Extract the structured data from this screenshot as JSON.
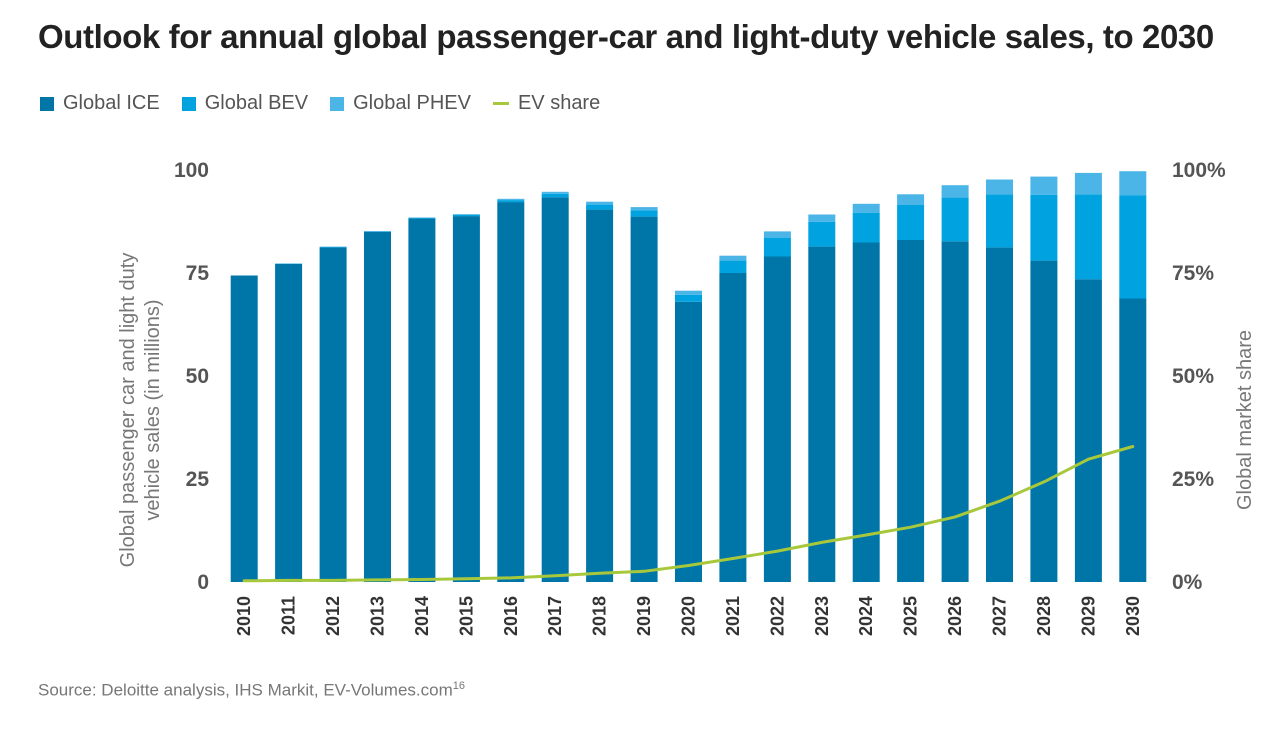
{
  "chart_data": {
    "type": "bar",
    "title": "Outlook for annual global passenger-car and light-duty vehicle sales, to 2030",
    "ylabel": "Global passenger car and light duty vehicle sales (in millions)",
    "y2label": "Global market share",
    "source": "Source: Deloitte analysis, IHS Markit, EV-Volumes.com",
    "source_note": "16",
    "ylim": [
      0,
      100
    ],
    "y2lim": [
      0,
      100
    ],
    "yticks": [
      "0",
      "25",
      "50",
      "75",
      "100"
    ],
    "y2ticks": [
      "0%",
      "25%",
      "50%",
      "75%",
      "100%"
    ],
    "legend_position": "top-left",
    "stacked": true,
    "categories": [
      "2010",
      "2011",
      "2012",
      "2013",
      "2014",
      "2015",
      "2016",
      "2017",
      "2018",
      "2019",
      "2020",
      "2021",
      "2022",
      "2023",
      "2024",
      "2025",
      "2026",
      "2027",
      "2028",
      "2029",
      "2030"
    ],
    "series": [
      {
        "name": "Global ICE",
        "type": "bar",
        "color": "#0076a8",
        "values": [
          74.4,
          77.2,
          81.2,
          85.0,
          88.2,
          88.8,
          92.2,
          93.4,
          90.4,
          88.7,
          68.0,
          75.0,
          79.0,
          81.4,
          82.4,
          83.0,
          82.7,
          81.2,
          78.0,
          73.5,
          68.8
        ]
      },
      {
        "name": "Global BEV",
        "type": "bar",
        "color": "#00a3e0",
        "values": [
          0.0,
          0.1,
          0.1,
          0.1,
          0.2,
          0.3,
          0.5,
          0.8,
          1.2,
          1.5,
          1.7,
          3.0,
          4.5,
          6.0,
          7.2,
          8.5,
          10.6,
          12.9,
          16.0,
          20.6,
          25.0
        ]
      },
      {
        "name": "Global PHEV",
        "type": "bar",
        "color": "#4ab5e6",
        "values": [
          0.0,
          0.0,
          0.1,
          0.1,
          0.1,
          0.2,
          0.3,
          0.5,
          0.7,
          0.8,
          1.0,
          1.2,
          1.6,
          1.8,
          2.2,
          2.6,
          3.0,
          3.6,
          4.4,
          5.2,
          5.9
        ]
      },
      {
        "name": "EV share",
        "type": "line",
        "color": "#a8c83c",
        "axis": "right",
        "unit": "%",
        "values": [
          0.3,
          0.4,
          0.4,
          0.5,
          0.6,
          0.8,
          1.0,
          1.5,
          2.1,
          2.6,
          4.0,
          5.7,
          7.5,
          9.6,
          11.4,
          13.3,
          15.8,
          19.6,
          24.3,
          29.8,
          32.9
        ]
      }
    ]
  }
}
